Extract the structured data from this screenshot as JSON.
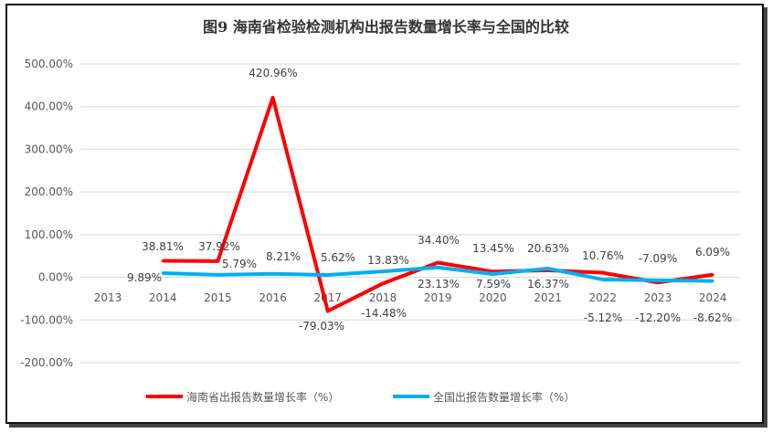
{
  "chart_data": {
    "type": "line",
    "title": "图9 海南省检验检测机构出报告数量增长率与全国的比较",
    "categories": [
      "2013",
      "2014",
      "2015",
      "2016",
      "2017",
      "2018",
      "2019",
      "2020",
      "2021",
      "2022",
      "2023",
      "2024"
    ],
    "ylim": [
      -200,
      500
    ],
    "yticks": [
      "-200.00%",
      "-100.00%",
      "0.00%",
      "100.00%",
      "200.00%",
      "300.00%",
      "400.00%",
      "500.00%"
    ],
    "grid": true,
    "legend_position": "bottom",
    "series": [
      {
        "name": "海南省出报告数量增长率（%）",
        "color": "#FF0000",
        "values": [
          null,
          38.81,
          37.92,
          420.96,
          -79.03,
          -14.48,
          34.4,
          13.45,
          16.37,
          10.76,
          -12.2,
          6.09
        ],
        "labels": [
          "",
          "38.81%",
          "37.92%",
          "420.96%",
          "-79.03%",
          "-14.48%",
          "34.40%",
          "13.45%",
          "16.37%",
          "10.76%",
          "-12.20%",
          "6.09%"
        ]
      },
      {
        "name": "全国出报告数量增长率（%）",
        "color": "#00B0F0",
        "values": [
          null,
          9.89,
          5.79,
          8.21,
          5.62,
          13.83,
          23.13,
          7.59,
          20.63,
          -5.12,
          -7.09,
          -8.62
        ],
        "labels": [
          "",
          "9.89%",
          "5.79%",
          "8.21%",
          "5.62%",
          "13.83%",
          "23.13%",
          "7.59%",
          "20.63%",
          "-5.12%",
          "-7.09%",
          "-8.62%"
        ]
      }
    ]
  }
}
